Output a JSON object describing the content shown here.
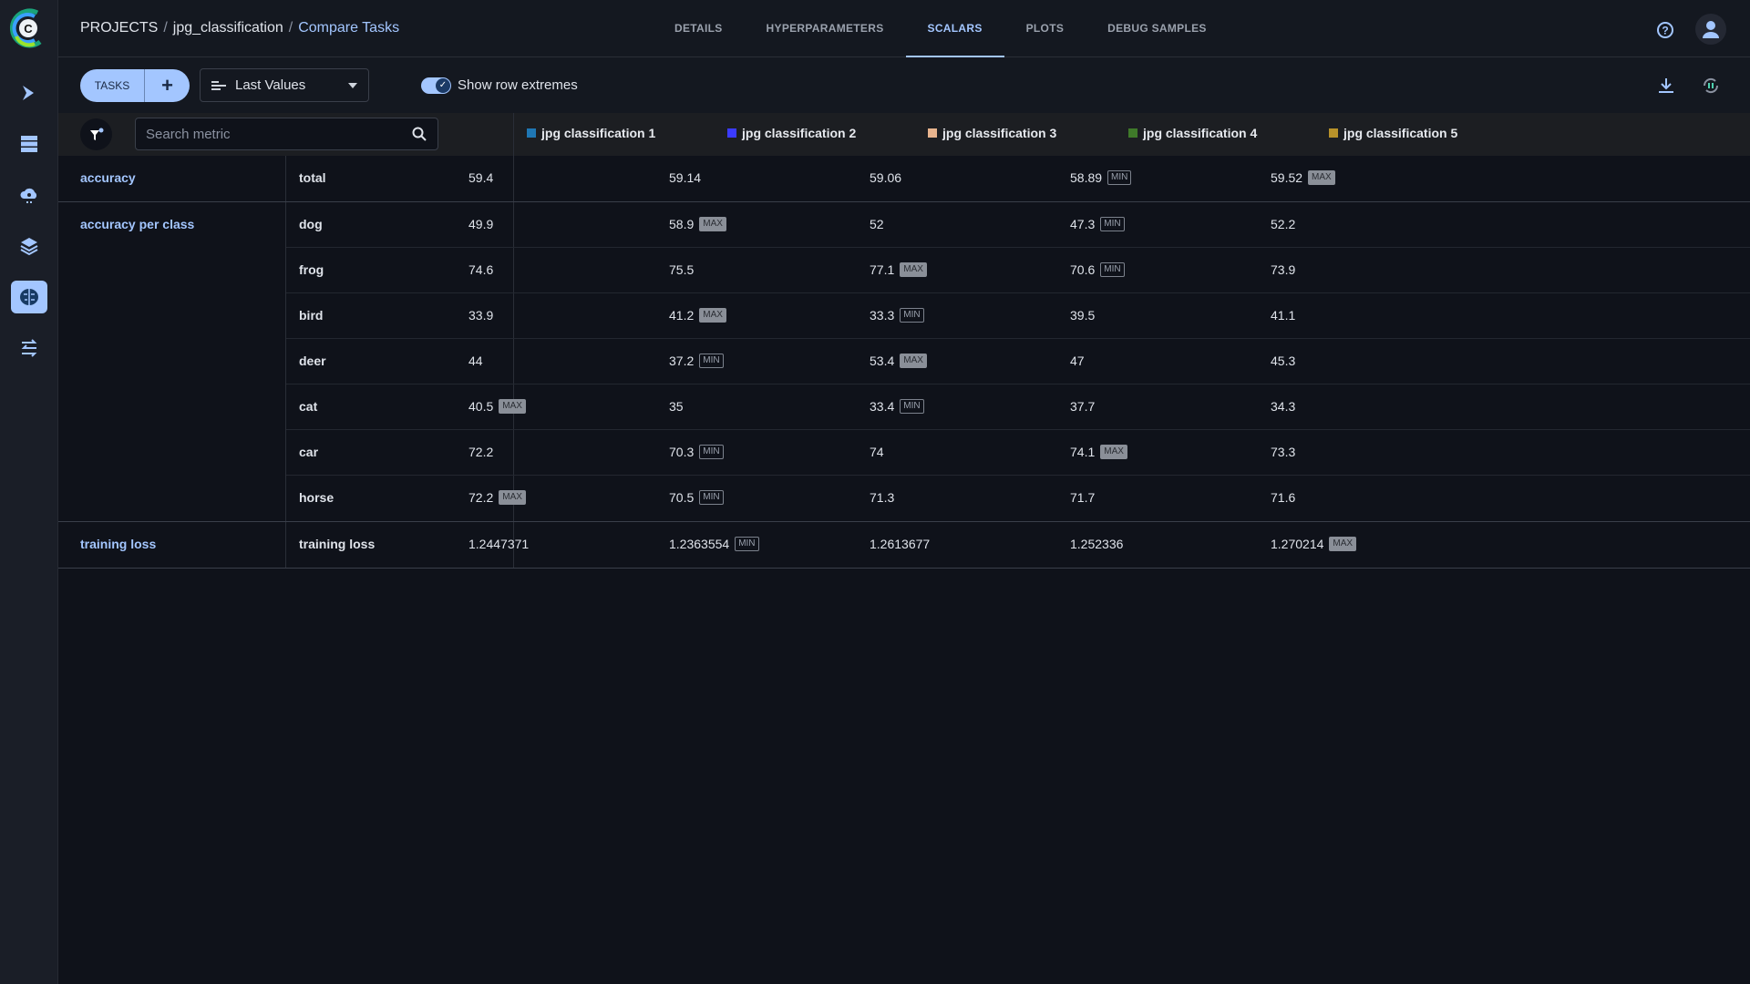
{
  "breadcrumb": {
    "projects": "PROJECTS",
    "project": "jpg_classification",
    "current": "Compare Tasks"
  },
  "tabs": [
    {
      "label": "DETAILS"
    },
    {
      "label": "HYPERPARAMETERS"
    },
    {
      "label": "SCALARS",
      "active": true
    },
    {
      "label": "PLOTS"
    },
    {
      "label": "DEBUG SAMPLES"
    }
  ],
  "toolbar": {
    "tasks_label": "TASKS",
    "add_label": "+",
    "value_mode": "Last Values",
    "show_extremes_label": "Show row extremes",
    "show_extremes": true
  },
  "search": {
    "placeholder": "Search metric",
    "value": ""
  },
  "accent": "#a3c6ff",
  "columns": [
    {
      "name": "jpg classification 1",
      "color": "#1f77b4"
    },
    {
      "name": "jpg classification 2",
      "color": "#3b3bff"
    },
    {
      "name": "jpg classification 3",
      "color": "#e8b48e"
    },
    {
      "name": "jpg classification 4",
      "color": "#3f7a2a"
    },
    {
      "name": "jpg classification 5",
      "color": "#b8922a"
    }
  ],
  "groups": [
    {
      "name": "accuracy",
      "metrics": [
        {
          "name": "total",
          "values": [
            {
              "v": "59.4"
            },
            {
              "v": "59.14"
            },
            {
              "v": "59.06"
            },
            {
              "v": "58.89",
              "badge": "MIN"
            },
            {
              "v": "59.52",
              "badge": "MAX"
            }
          ]
        }
      ]
    },
    {
      "name": "accuracy per class",
      "metrics": [
        {
          "name": "dog",
          "values": [
            {
              "v": "49.9"
            },
            {
              "v": "58.9",
              "badge": "MAX"
            },
            {
              "v": "52"
            },
            {
              "v": "47.3",
              "badge": "MIN"
            },
            {
              "v": "52.2"
            }
          ]
        },
        {
          "name": "frog",
          "values": [
            {
              "v": "74.6"
            },
            {
              "v": "75.5"
            },
            {
              "v": "77.1",
              "badge": "MAX"
            },
            {
              "v": "70.6",
              "badge": "MIN"
            },
            {
              "v": "73.9"
            }
          ]
        },
        {
          "name": "bird",
          "values": [
            {
              "v": "33.9"
            },
            {
              "v": "41.2",
              "badge": "MAX"
            },
            {
              "v": "33.3",
              "badge": "MIN"
            },
            {
              "v": "39.5"
            },
            {
              "v": "41.1"
            }
          ]
        },
        {
          "name": "deer",
          "values": [
            {
              "v": "44"
            },
            {
              "v": "37.2",
              "badge": "MIN"
            },
            {
              "v": "53.4",
              "badge": "MAX"
            },
            {
              "v": "47"
            },
            {
              "v": "45.3"
            }
          ]
        },
        {
          "name": "cat",
          "values": [
            {
              "v": "40.5",
              "badge": "MAX"
            },
            {
              "v": "35"
            },
            {
              "v": "33.4",
              "badge": "MIN"
            },
            {
              "v": "37.7"
            },
            {
              "v": "34.3"
            }
          ]
        },
        {
          "name": "car",
          "values": [
            {
              "v": "72.2"
            },
            {
              "v": "70.3",
              "badge": "MIN"
            },
            {
              "v": "74"
            },
            {
              "v": "74.1",
              "badge": "MAX"
            },
            {
              "v": "73.3"
            }
          ]
        },
        {
          "name": "horse",
          "values": [
            {
              "v": "72.2",
              "badge": "MAX"
            },
            {
              "v": "70.5",
              "badge": "MIN"
            },
            {
              "v": "71.3"
            },
            {
              "v": "71.7"
            },
            {
              "v": "71.6"
            }
          ]
        }
      ]
    },
    {
      "name": "training loss",
      "metrics": [
        {
          "name": "training loss",
          "values": [
            {
              "v": "1.2447371"
            },
            {
              "v": "1.2363554",
              "badge": "MIN"
            },
            {
              "v": "1.2613677"
            },
            {
              "v": "1.252336"
            },
            {
              "v": "1.270214",
              "badge": "MAX"
            }
          ]
        }
      ]
    }
  ],
  "icons": {
    "sidebar": [
      "pipelines-icon",
      "datasets-icon",
      "cloud-agent-icon",
      "layers-icon",
      "brain-icon",
      "reports-icon"
    ]
  }
}
